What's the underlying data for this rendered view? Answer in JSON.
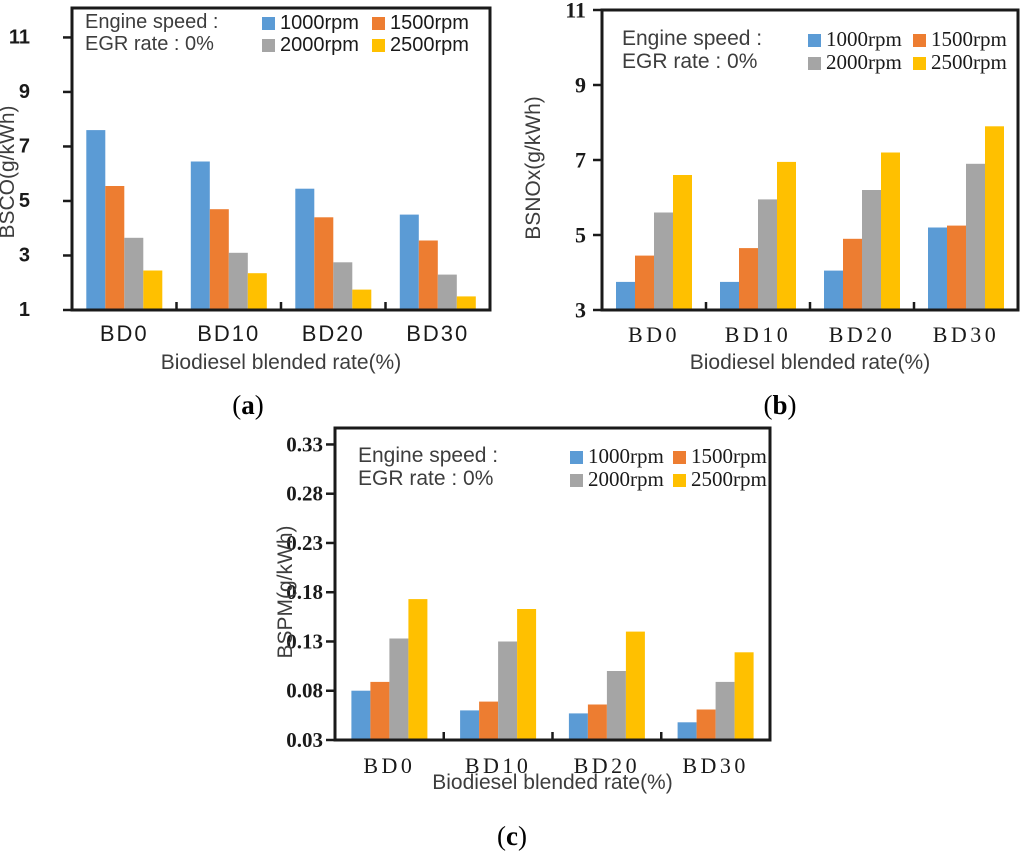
{
  "colors": {
    "frame": "#1a1a1a",
    "tick_label": "#1a1a1a",
    "axis_title": "#3d3d3d",
    "annotation": "#3d3d3d",
    "legend_label": "#1a1a1a",
    "series_blue": "#5B9BD5",
    "series_orange": "#ED7D31",
    "series_gray": "#A5A5A5",
    "series_yellow": "#FFC000"
  },
  "chart_data": [
    {
      "id": "a",
      "type": "bar",
      "panel_label": "a",
      "ylabel": "BSCO(g/kWh)",
      "xlabel": "Biodiesel blended rate(%)",
      "categories": [
        "BD0",
        "BD10",
        "BD20",
        "BD30"
      ],
      "series": [
        {
          "name": "1000rpm",
          "color": "#5B9BD5",
          "values": [
            7.6,
            6.45,
            5.45,
            4.5
          ]
        },
        {
          "name": "1500rpm",
          "color": "#ED7D31",
          "values": [
            5.55,
            4.7,
            4.4,
            3.55
          ]
        },
        {
          "name": "2000rpm",
          "color": "#A5A5A5",
          "values": [
            3.65,
            3.1,
            2.75,
            2.3
          ]
        },
        {
          "name": "2500rpm",
          "color": "#FFC000",
          "values": [
            2.45,
            2.35,
            1.75,
            1.5
          ]
        }
      ],
      "annotation_lines": [
        "Engine speed :",
        "EGR rate : 0%"
      ],
      "yticks": [
        1,
        3,
        5,
        7,
        9,
        11
      ],
      "ytick_labels": [
        "1",
        "3",
        "5",
        "7",
        "9",
        "11"
      ],
      "ylim": [
        1,
        12.08
      ],
      "grid": false,
      "legend_position": "top-inside"
    },
    {
      "id": "b",
      "type": "bar",
      "panel_label": "b",
      "ylabel": "BSNOx(g/kWh)",
      "xlabel": "Biodiesel blended rate(%)",
      "categories": [
        "BD0",
        "BD10",
        "BD20",
        "BD30"
      ],
      "series": [
        {
          "name": "1000rpm",
          "color": "#5B9BD5",
          "values": [
            3.75,
            3.75,
            4.05,
            5.2
          ]
        },
        {
          "name": "1500rpm",
          "color": "#ED7D31",
          "values": [
            4.45,
            4.65,
            4.9,
            5.25
          ]
        },
        {
          "name": "2000rpm",
          "color": "#A5A5A5",
          "values": [
            5.6,
            5.95,
            6.2,
            6.9
          ]
        },
        {
          "name": "2500rpm",
          "color": "#FFC000",
          "values": [
            6.6,
            6.95,
            7.2,
            7.9
          ]
        }
      ],
      "annotation_lines": [
        "Engine speed :",
        "EGR rate : 0%"
      ],
      "yticks": [
        3,
        5,
        7,
        9,
        11
      ],
      "ytick_labels": [
        "3",
        "5",
        "7",
        "9",
        "11"
      ],
      "ylim": [
        3,
        11
      ],
      "grid": false,
      "legend_position": "top-inside"
    },
    {
      "id": "c",
      "type": "bar",
      "panel_label": "c",
      "ylabel": "BSPM(g/kWh)",
      "xlabel": "Biodiesel blended rate(%)",
      "categories": [
        "BD0",
        "BD10",
        "BD20",
        "BD30"
      ],
      "series": [
        {
          "name": "1000rpm",
          "color": "#5B9BD5",
          "values": [
            0.08,
            0.06,
            0.057,
            0.048
          ]
        },
        {
          "name": "1500rpm",
          "color": "#ED7D31",
          "values": [
            0.089,
            0.069,
            0.066,
            0.061
          ]
        },
        {
          "name": "2000rpm",
          "color": "#A5A5A5",
          "values": [
            0.133,
            0.13,
            0.1,
            0.089
          ]
        },
        {
          "name": "2500rpm",
          "color": "#FFC000",
          "values": [
            0.173,
            0.163,
            0.14,
            0.119
          ]
        }
      ],
      "annotation_lines": [
        "Engine speed :",
        "EGR rate : 0%"
      ],
      "yticks": [
        0.03,
        0.08,
        0.13,
        0.18,
        0.23,
        0.28,
        0.33
      ],
      "ytick_labels": [
        "0.03",
        "0.08",
        "0.13",
        "0.18",
        "0.23",
        "0.28",
        "0.33"
      ],
      "ylim": [
        0.03,
        0.3467
      ],
      "grid": false,
      "legend_position": "top-inside"
    }
  ]
}
